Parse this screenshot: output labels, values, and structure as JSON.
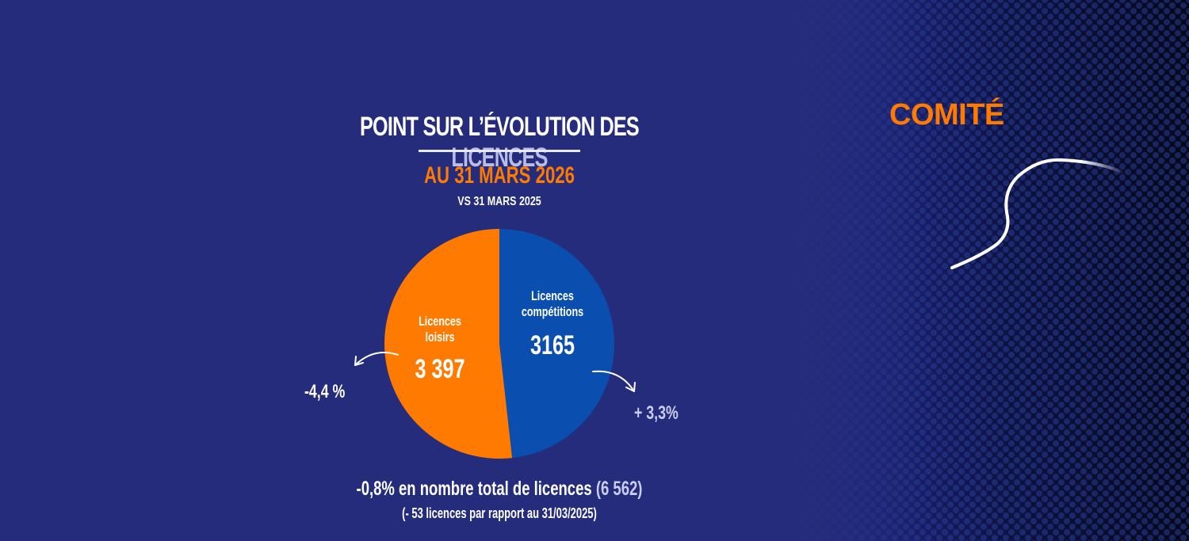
{
  "title": {
    "part1": "POINT SUR L’ÉVOLUTION DES ",
    "highlight": "LICENCES"
  },
  "subtitle": "AU 31 MARS 2026",
  "comparison": "VS 31 MARS 2025",
  "brand": {
    "text": "COMITÉ",
    "color": "#ff7a00"
  },
  "colors": {
    "background": "#252c7c",
    "orange": "#ff7a00",
    "blue": "#0a4fb0"
  },
  "chart_data": {
    "type": "pie",
    "title": "POINT SUR L’ÉVOLUTION DES LICENCES",
    "subtitle": "AU 31 MARS 2026 — VS 31 MARS 2025",
    "start_angle_deg": 0,
    "direction": "clockwise",
    "slices": [
      {
        "name": "Licences compétitions",
        "value": 3165,
        "value_label": "3165",
        "color": "#0a4fb0",
        "change": "+ 3,3%"
      },
      {
        "name": "Licences loisirs",
        "value": 3397,
        "value_label": "3 397",
        "color": "#ff7a00",
        "change": "-4,4 %"
      }
    ],
    "total": 6562,
    "total_change": "-0,8%",
    "total_delta": -53
  },
  "labels": {
    "loisirs_name_1": "Licences",
    "loisirs_name_2": "loisirs",
    "loisirs_value": "3 397",
    "comp_name_1": "Licences",
    "comp_name_2": "compétitions",
    "comp_value": "3165",
    "loisirs_change": "-4,4 %",
    "comp_change": "+ 3,3%"
  },
  "footer": {
    "line1_main": "-0,8% en nombre total de licences ",
    "line1_total": "(6 562)",
    "line2": "(- 53 licences par rapport au 31/03/2025)"
  }
}
